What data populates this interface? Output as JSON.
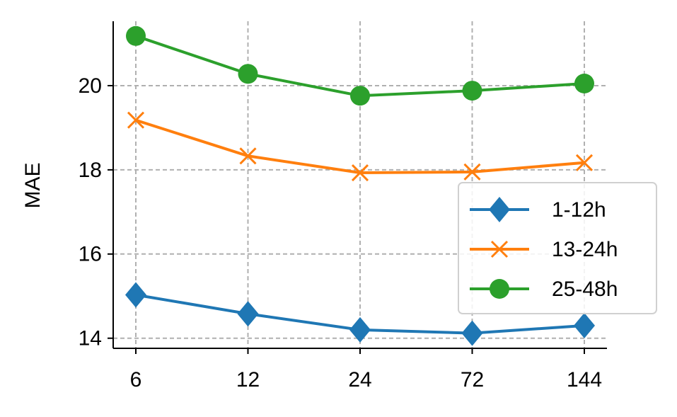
{
  "chart_data": {
    "type": "line",
    "ylabel": "MAE",
    "categories": [
      "6",
      "12",
      "24",
      "72",
      "144"
    ],
    "series": [
      {
        "name": "1-12h",
        "color": "#1f77b4",
        "marker": "diamond",
        "values": [
          15.03,
          14.58,
          14.2,
          14.12,
          14.3
        ]
      },
      {
        "name": "13-24h",
        "color": "#ff7f0e",
        "marker": "x",
        "values": [
          19.18,
          18.33,
          17.93,
          17.95,
          18.17
        ]
      },
      {
        "name": "25-48h",
        "color": "#2ca02c",
        "marker": "circle",
        "values": [
          21.18,
          20.28,
          19.76,
          19.88,
          20.05
        ]
      }
    ],
    "ylim": [
      13.76,
      21.53
    ],
    "yticks": [
      14,
      16,
      18,
      20
    ],
    "grid": true,
    "legend": "lower right"
  }
}
